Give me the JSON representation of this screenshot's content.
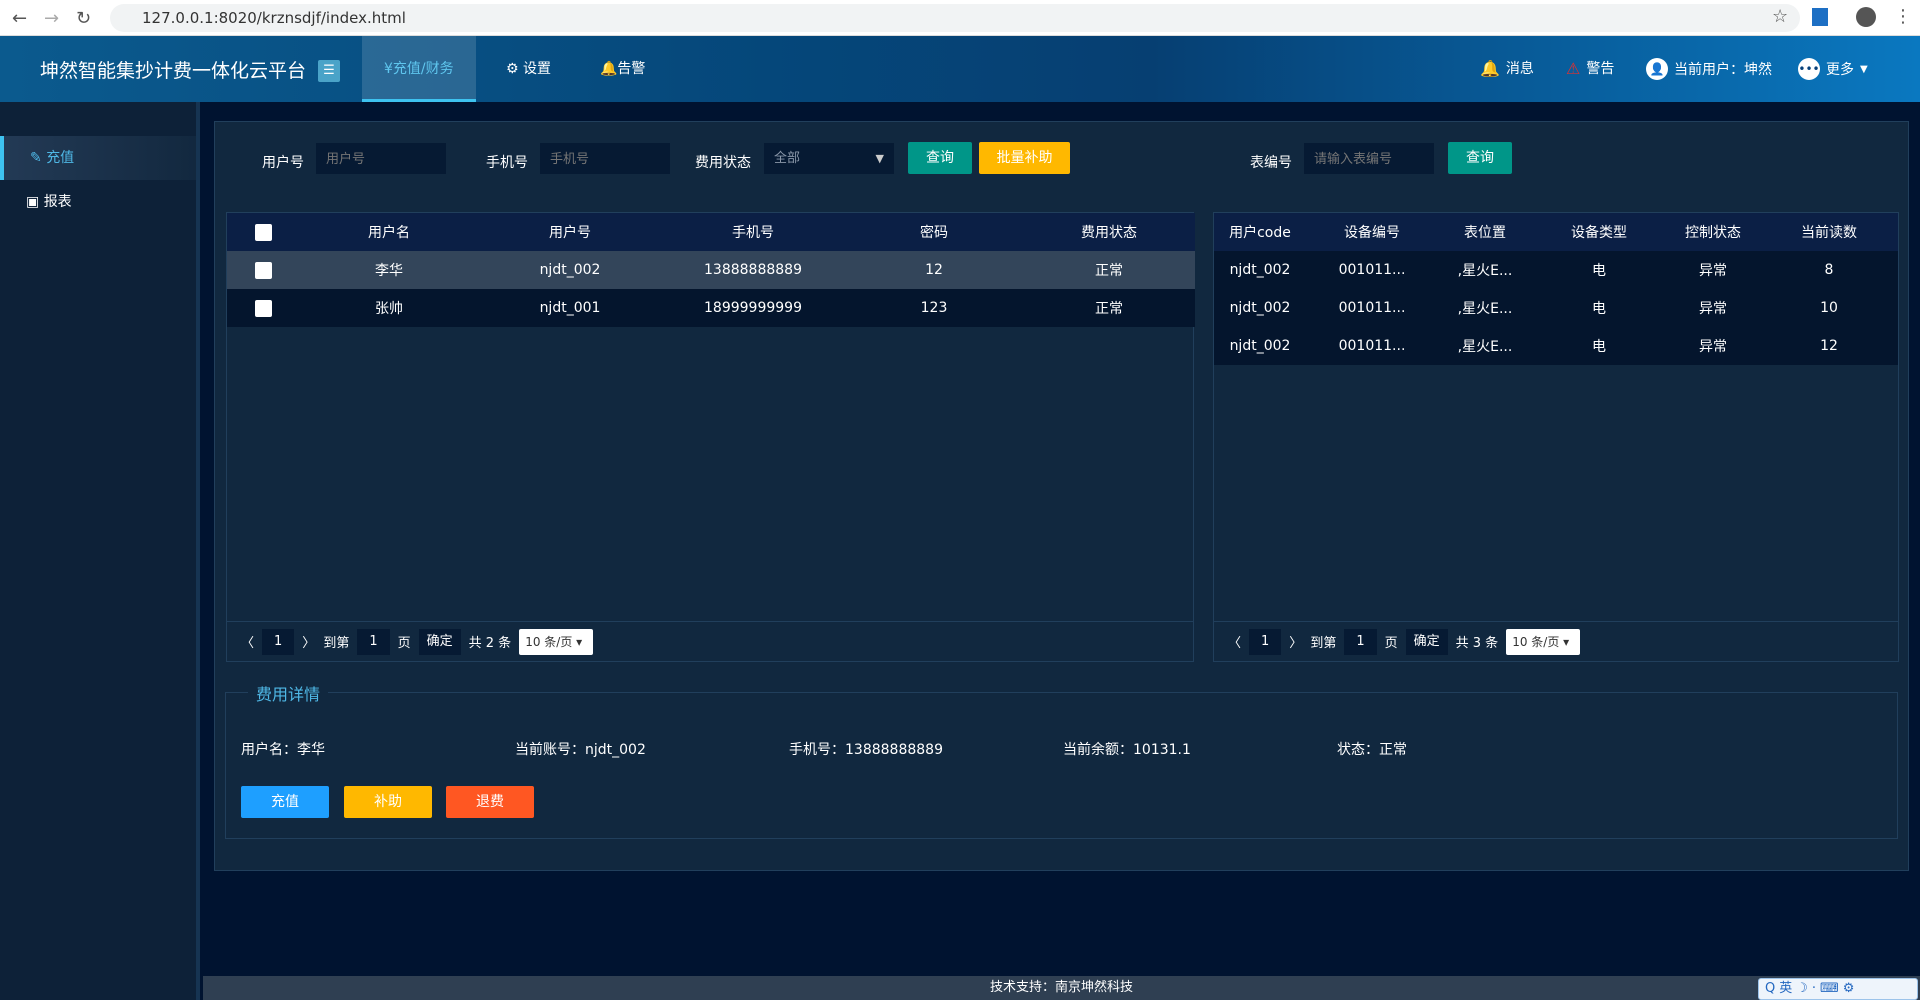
{
  "browser": {
    "url": "127.0.0.1:8020/krznsdjf/index.html"
  },
  "header": {
    "title": "坤然智能集抄计费一体化云平台",
    "tabs": [
      {
        "label": "¥充值/财务"
      },
      {
        "label": "⚙ 设置"
      },
      {
        "label": "🔔告警"
      }
    ],
    "right": {
      "messages": "消息",
      "alerts": "警告",
      "user": "当前用户：坤然",
      "more": "更多"
    }
  },
  "sidebar": {
    "items": [
      {
        "label": "充值",
        "icon": "pencil-icon"
      },
      {
        "label": "报表",
        "icon": "screen-icon"
      }
    ]
  },
  "filters": {
    "user_no_label": "用户号",
    "user_no_placeholder": "用户号",
    "phone_label": "手机号",
    "phone_placeholder": "手机号",
    "status_label": "费用状态",
    "status_value": "全部",
    "query": "查询",
    "batch_subsidy": "批量补助",
    "meter_label": "表编号",
    "meter_placeholder": "请输入表编号",
    "meter_query": "查询"
  },
  "user_table": {
    "columns": [
      "用户名",
      "用户号",
      "手机号",
      "密码",
      "费用状态"
    ],
    "rows": [
      [
        "李华",
        "njdt_002",
        "13888888889",
        "12",
        "正常"
      ],
      [
        "张帅",
        "njdt_001",
        "18999999999",
        "123",
        "正常"
      ]
    ],
    "pager": {
      "page": "1",
      "goto": "到第",
      "goto_value": "1",
      "page_unit": "页",
      "confirm": "确定",
      "total": "共 2 条",
      "page_size": "10 条/页"
    }
  },
  "meter_table": {
    "columns": [
      "用户code",
      "设备编号",
      "表位置",
      "设备类型",
      "控制状态",
      "当前读数"
    ],
    "rows": [
      [
        "njdt_002",
        "001011...",
        ",星火E...",
        "电",
        "异常",
        "8"
      ],
      [
        "njdt_002",
        "001011...",
        ",星火E...",
        "电",
        "异常",
        "10"
      ],
      [
        "njdt_002",
        "001011...",
        ",星火E...",
        "电",
        "异常",
        "12"
      ]
    ],
    "pager": {
      "page": "1",
      "goto": "到第",
      "goto_value": "1",
      "page_unit": "页",
      "confirm": "确定",
      "total": "共 3 条",
      "page_size": "10 条/页"
    }
  },
  "fee": {
    "legend": "费用详情",
    "username": "用户名：李华",
    "account": "当前账号：njdt_002",
    "phone": "手机号：13888888889",
    "balance": "当前余额：10131.1",
    "status": "状态：正常",
    "recharge": "充值",
    "subsidy": "补助",
    "refund": "退费"
  },
  "footer": {
    "text": "技术支持：南京坤然科技"
  },
  "ime": {
    "text": "英"
  },
  "colors": {
    "accent": "#3ec3f0",
    "query": "#009688",
    "subsidy": "#ffb800",
    "recharge": "#1e9fff",
    "refund": "#ff5722"
  }
}
